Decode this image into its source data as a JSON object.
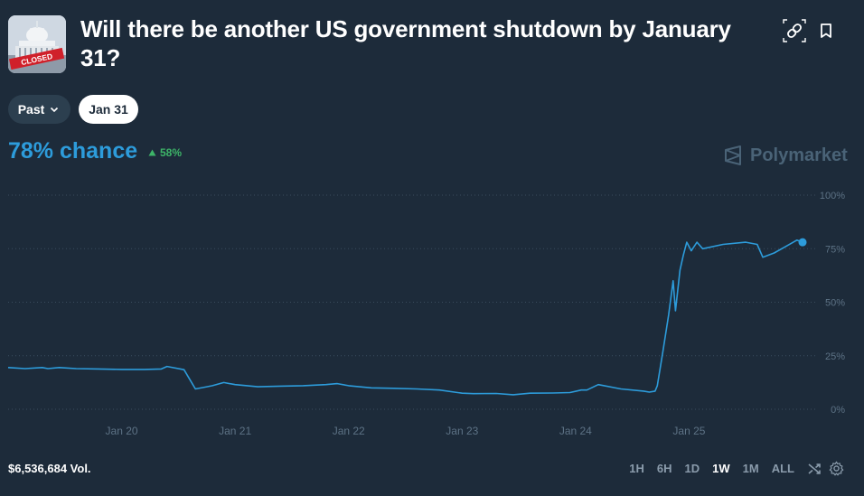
{
  "header": {
    "title": "Will there be another US government shutdown by January 31?",
    "thumbnail_stamp": "CLOSED",
    "icons": [
      "link-icon",
      "bookmark-icon"
    ]
  },
  "filters": {
    "past_label": "Past",
    "date_label": "Jan 31"
  },
  "summary": {
    "chance_text": "78% chance",
    "delta_text": "58%",
    "brand": "Polymarket",
    "volume_text": "$6,536,684 Vol."
  },
  "range_buttons": [
    "1H",
    "6H",
    "1D",
    "1W",
    "1M",
    "ALL"
  ],
  "active_range": "1W",
  "colors": {
    "background": "#1d2b3a",
    "line": "#2d9cdb",
    "positive": "#3db468",
    "muted": "#8a9bab"
  },
  "chart_data": {
    "type": "line",
    "ylim": [
      0,
      100
    ],
    "y_ticks": [
      "100%",
      "75%",
      "50%",
      "25%",
      "0%"
    ],
    "y_tick_values": [
      100,
      75,
      50,
      25,
      0
    ],
    "x_ticks": [
      "Jan 20",
      "Jan 21",
      "Jan 22",
      "Jan 23",
      "Jan 24",
      "Jan 25"
    ],
    "x_tick_positions": [
      20,
      21,
      22,
      23,
      24,
      25
    ],
    "xlim": [
      19.0,
      26.0
    ],
    "grid": true,
    "series": [
      {
        "x": [
          19.0,
          19.15,
          19.3,
          19.35,
          19.45,
          19.6,
          19.8,
          20.0,
          20.2,
          20.35,
          20.4,
          20.55,
          20.6,
          20.65,
          20.75,
          20.8,
          20.9,
          21.0,
          21.2,
          21.4,
          21.6,
          21.8,
          21.9,
          22.0,
          22.2,
          22.4,
          22.6,
          22.8,
          23.0,
          23.1,
          23.3,
          23.45,
          23.6,
          23.8,
          23.95,
          24.05,
          24.1,
          24.2,
          24.4,
          24.6,
          24.65,
          24.7,
          24.72,
          24.77,
          24.82,
          24.86,
          24.88,
          24.92,
          24.95,
          24.98,
          25.02,
          25.07,
          25.12,
          25.3,
          25.5,
          25.6,
          25.65,
          25.75,
          25.85,
          25.95,
          26.0
        ],
        "values": [
          19.5,
          19.0,
          19.5,
          19.0,
          19.5,
          19.0,
          18.8,
          18.6,
          18.6,
          18.8,
          20.0,
          18.5,
          14.0,
          9.5,
          10.5,
          11.0,
          12.5,
          11.5,
          10.5,
          10.8,
          11.0,
          11.5,
          12.0,
          11.0,
          10.0,
          9.8,
          9.5,
          9.0,
          7.5,
          7.3,
          7.4,
          6.8,
          7.5,
          7.6,
          7.8,
          9.0,
          9.0,
          11.5,
          9.5,
          8.5,
          8.0,
          8.5,
          11.0,
          27.0,
          44.0,
          60.0,
          46.0,
          65.0,
          72.0,
          78.0,
          74.0,
          78.0,
          75.0,
          77.0,
          78.0,
          77.0,
          71.0,
          73.0,
          76.0,
          79.0,
          78.0
        ]
      }
    ]
  }
}
